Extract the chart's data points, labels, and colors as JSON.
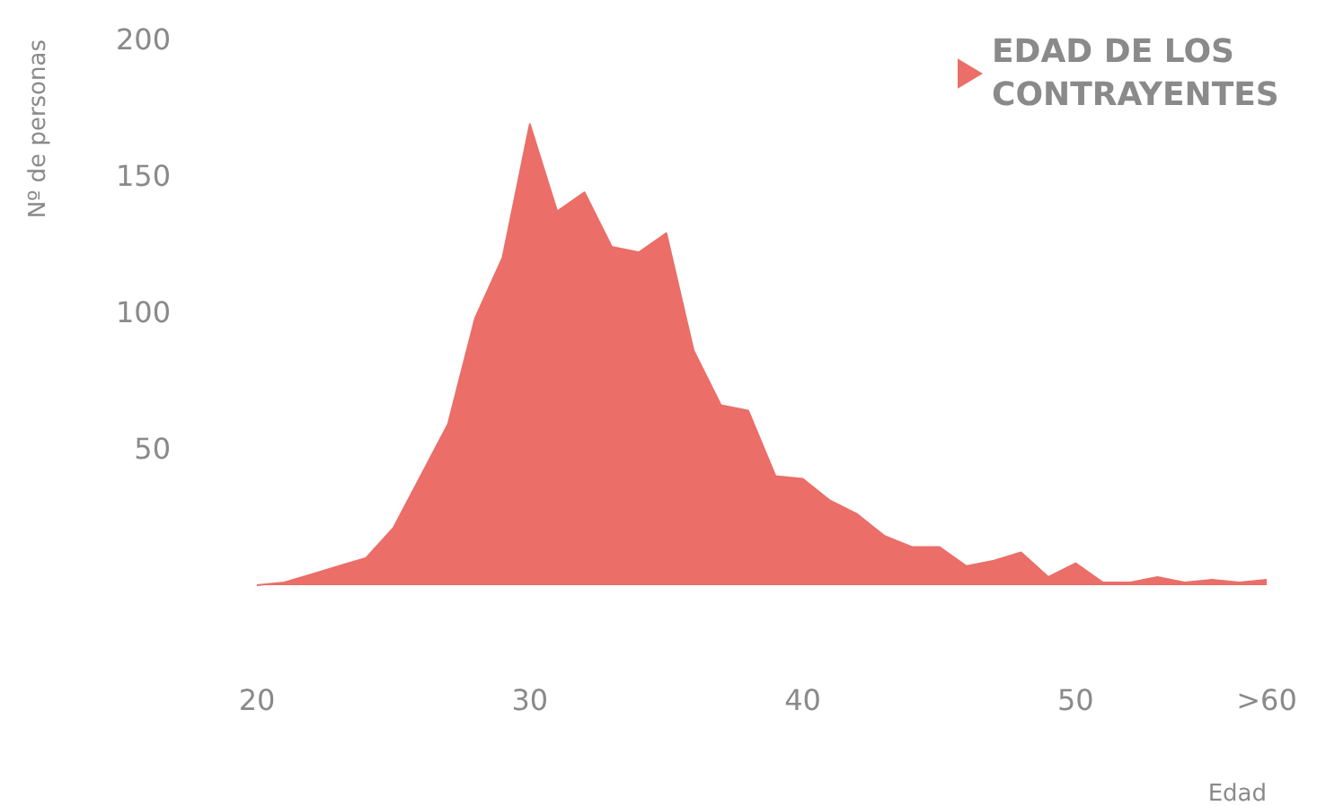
{
  "chart_data": {
    "type": "area",
    "ylabel": "Nº de personas",
    "xlabel": "Edad",
    "categories": [
      "20",
      null,
      null,
      null,
      null,
      null,
      null,
      null,
      null,
      null,
      "30",
      null,
      null,
      null,
      null,
      null,
      null,
      null,
      null,
      null,
      "40",
      null,
      null,
      null,
      null,
      null,
      null,
      null,
      null,
      null,
      "50",
      null,
      null,
      null,
      null,
      null,
      null,
      ">60"
    ],
    "series": [
      {
        "name": "EDAD DE LOS CONTRAYENTES",
        "color": "#eb6e68",
        "values": [
          0,
          1,
          4,
          7,
          10,
          21,
          40,
          59,
          98,
          120,
          169,
          137,
          144,
          124,
          122,
          129,
          86,
          66,
          64,
          40,
          39,
          31,
          26,
          18,
          14,
          14,
          7,
          9,
          12,
          3,
          8,
          1,
          1,
          3,
          1,
          2,
          1,
          2
        ]
      }
    ],
    "ylim": [
      0,
      200
    ],
    "yticks": [
      50,
      100,
      150,
      200
    ],
    "grid": false,
    "legend": "top right",
    "marker": "none"
  }
}
